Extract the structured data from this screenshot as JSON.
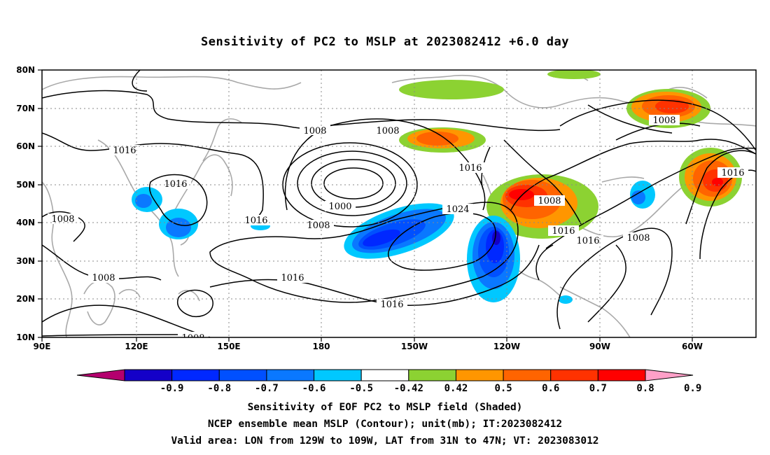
{
  "title": "Sensitivity of PC2 to MSLP at 2023082412 +6.0 day",
  "map": {
    "lat_ticks": [
      "80N",
      "70N",
      "60N",
      "50N",
      "40N",
      "30N",
      "20N",
      "10N"
    ],
    "lon_ticks": [
      "90E",
      "120E",
      "150E",
      "180",
      "150W",
      "120W",
      "90W",
      "60W"
    ],
    "contour_labels": [
      "1008",
      "1008",
      "1016",
      "1016",
      "1016",
      "1000",
      "1008",
      "1016",
      "1024",
      "1008",
      "1008",
      "1016",
      "1016",
      "1016",
      "1016",
      "1008",
      "1008",
      "1008",
      "1016",
      "1008"
    ]
  },
  "colorbar": {
    "labels": [
      "-0.9",
      "-0.8",
      "-0.7",
      "-0.6",
      "-0.5",
      "-0.42",
      "0.42",
      "0.5",
      "0.6",
      "0.7",
      "0.8",
      "0.9"
    ],
    "colors": [
      "#b4006e",
      "#1400c8",
      "#0028ff",
      "#0050ff",
      "#0a78ff",
      "#00c8ff",
      "#ffffff",
      "#8cd232",
      "#ff9600",
      "#ff6400",
      "#ff3200",
      "#ff0000",
      "#ffa0c8"
    ]
  },
  "captions": [
    "Sensitivity of EOF PC2 to MSLP field (Shaded)",
    "NCEP ensemble mean MSLP (Contour); unit(mb); IT:2023082412",
    "Valid area: LON from 129W to 109W, LAT from 31N to 47N; VT: 2023083012"
  ]
}
